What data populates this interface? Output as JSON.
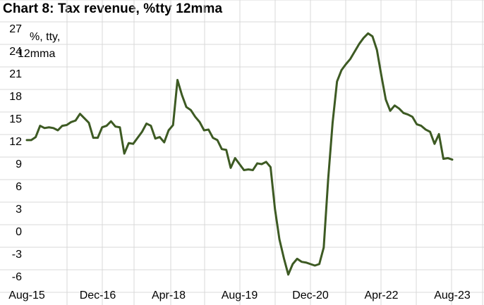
{
  "chart_data": {
    "type": "line",
    "title": "Chart 8: Tax revenue, %tty 12mma",
    "ylabel_lines": [
      "%, tty,",
      "12mma"
    ],
    "xlabel": "",
    "ylim": [
      -6,
      27
    ],
    "yticks": [
      27,
      24,
      21,
      18,
      15,
      12,
      9,
      6,
      3,
      0,
      -3,
      -6
    ],
    "xtick_labels": [
      "Aug-15",
      "Dec-16",
      "Apr-18",
      "Aug-19",
      "Dec-20",
      "Apr-22",
      "Aug-23"
    ],
    "grid": true,
    "series_color": "#3d5a23",
    "series": [
      {
        "values": [
          12.2,
          12.2,
          12.6,
          14.1,
          13.8,
          13.9,
          13.8,
          13.5,
          14.1,
          14.2,
          14.6,
          14.8,
          15.7,
          15.1,
          14.5,
          12.5,
          12.5,
          13.9,
          14.1,
          14.7,
          14.0,
          13.9,
          10.4,
          11.8,
          11.7,
          12.5,
          13.3,
          14.4,
          14.1,
          12.4,
          12.6,
          11.9,
          13.5,
          14.2,
          20.2,
          18.2,
          16.6,
          16.2,
          15.3,
          14.6,
          13.5,
          13.6,
          12.5,
          12.2,
          11.0,
          10.9,
          8.5,
          9.8,
          9.0,
          8.2,
          8.3,
          8.2,
          9.1,
          9.0,
          9.3,
          8.6,
          3.0,
          -1.0,
          -3.5,
          -5.7,
          -4.3,
          -3.6,
          -4.0,
          -4.1,
          -4.3,
          -4.5,
          -4.3,
          -2.1,
          7.0,
          14.5,
          20.0,
          21.5,
          22.3,
          23.0,
          24.0,
          25.0,
          25.8,
          26.4,
          26.0,
          24.2,
          20.8,
          17.6,
          16.1,
          16.8,
          16.4,
          15.8,
          15.6,
          15.3,
          14.3,
          14.1,
          13.6,
          13.3,
          11.7,
          13.0,
          9.7,
          9.8,
          9.6
        ]
      }
    ]
  }
}
